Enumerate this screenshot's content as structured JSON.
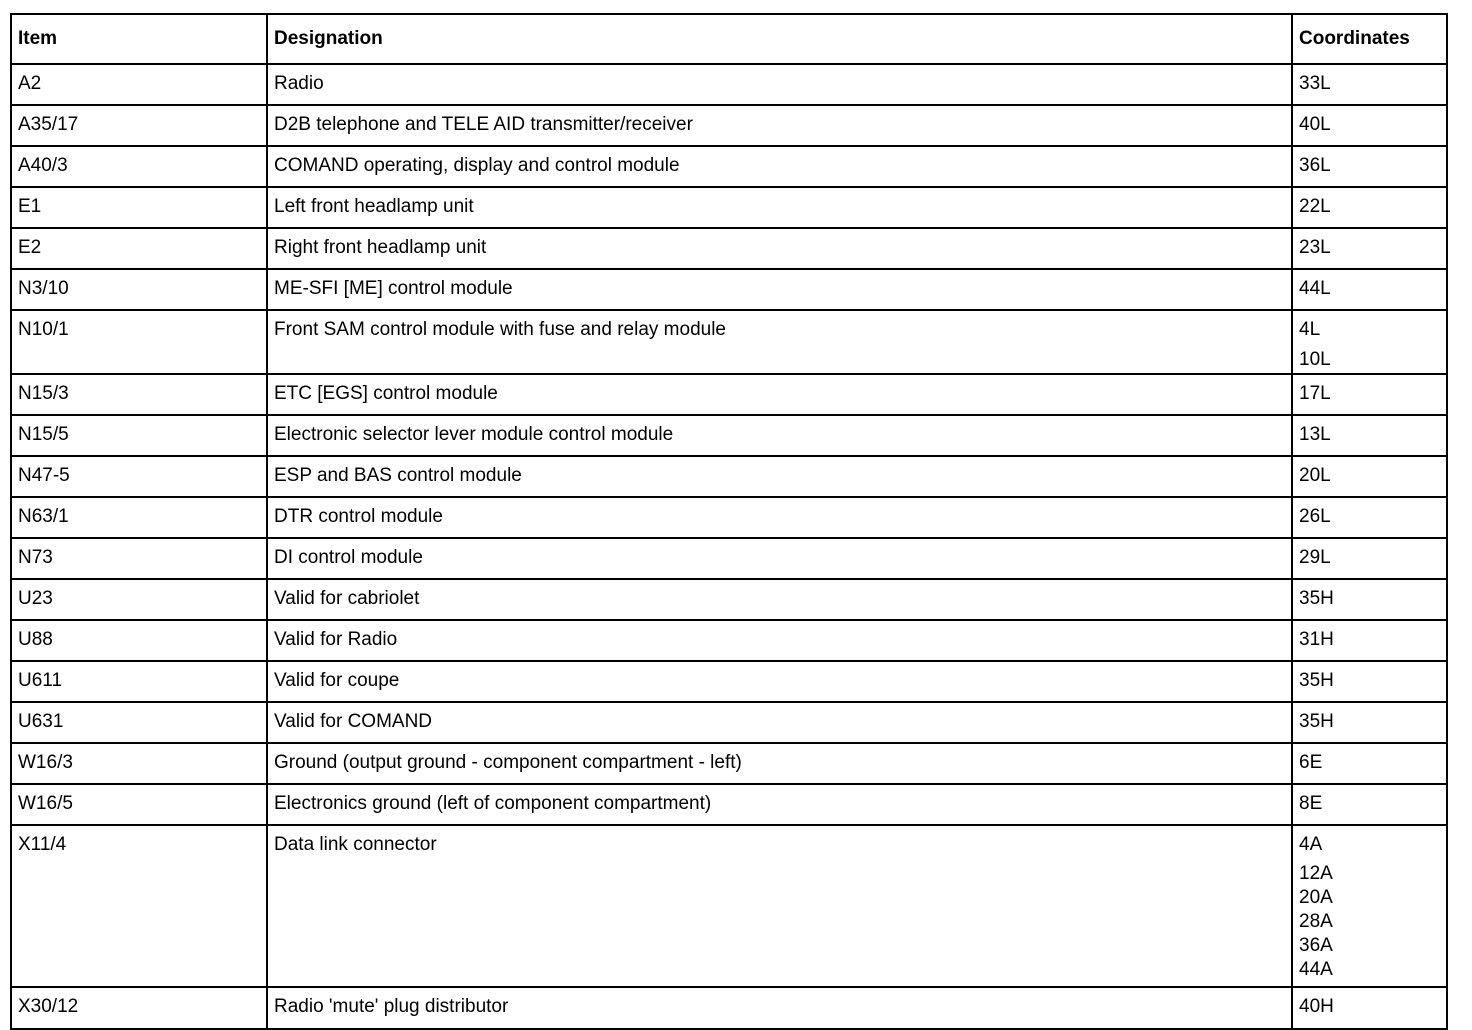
{
  "table": {
    "headers": [
      "Item",
      "Designation",
      "Coordinates"
    ],
    "rows": [
      {
        "item": "A2",
        "designation": "Radio",
        "coordinates": [
          "33L"
        ]
      },
      {
        "item": "A35/17",
        "designation": "D2B telephone and TELE AID transmitter/receiver",
        "coordinates": [
          "40L"
        ]
      },
      {
        "item": "A40/3",
        "designation": "COMAND operating, display and control module",
        "coordinates": [
          "36L"
        ]
      },
      {
        "item": "E1",
        "designation": "Left front headlamp unit",
        "coordinates": [
          "22L"
        ]
      },
      {
        "item": "E2",
        "designation": "Right front headlamp unit",
        "coordinates": [
          "23L"
        ]
      },
      {
        "item": "N3/10",
        "designation": "ME-SFI [ME] control module",
        "coordinates": [
          "44L"
        ]
      },
      {
        "item": "N10/1",
        "designation": "Front SAM control module with fuse and relay module",
        "coordinates": [
          "4L",
          "10L"
        ]
      },
      {
        "item": "N15/3",
        "designation": "ETC [EGS] control module",
        "coordinates": [
          "17L"
        ]
      },
      {
        "item": "N15/5",
        "designation": "Electronic selector lever module control module",
        "coordinates": [
          "13L"
        ]
      },
      {
        "item": "N47-5",
        "designation": "ESP and BAS control module",
        "coordinates": [
          "20L"
        ]
      },
      {
        "item": "N63/1",
        "designation": "DTR control module",
        "coordinates": [
          "26L"
        ]
      },
      {
        "item": "N73",
        "designation": "DI control module",
        "coordinates": [
          "29L"
        ]
      },
      {
        "item": "U23",
        "designation": "Valid for cabriolet",
        "coordinates": [
          "35H"
        ]
      },
      {
        "item": "U88",
        "designation": "Valid for Radio",
        "coordinates": [
          "31H"
        ]
      },
      {
        "item": "U611",
        "designation": "Valid for coupe",
        "coordinates": [
          "35H"
        ]
      },
      {
        "item": "U631",
        "designation": "Valid for COMAND",
        "coordinates": [
          "35H"
        ]
      },
      {
        "item": "W16/3",
        "designation": "Ground (output ground - component compartment - left)",
        "coordinates": [
          "6E"
        ]
      },
      {
        "item": "W16/5",
        "designation": "Electronics ground (left of component compartment)",
        "coordinates": [
          "8E"
        ]
      },
      {
        "item": "X11/4",
        "designation": "Data link connector",
        "coordinates": [
          "4A",
          "12A",
          "20A",
          "28A",
          "36A",
          "44A"
        ]
      },
      {
        "item": "X30/12",
        "designation": "Radio 'mute' plug distributor",
        "coordinates": [
          "40H"
        ]
      }
    ]
  }
}
